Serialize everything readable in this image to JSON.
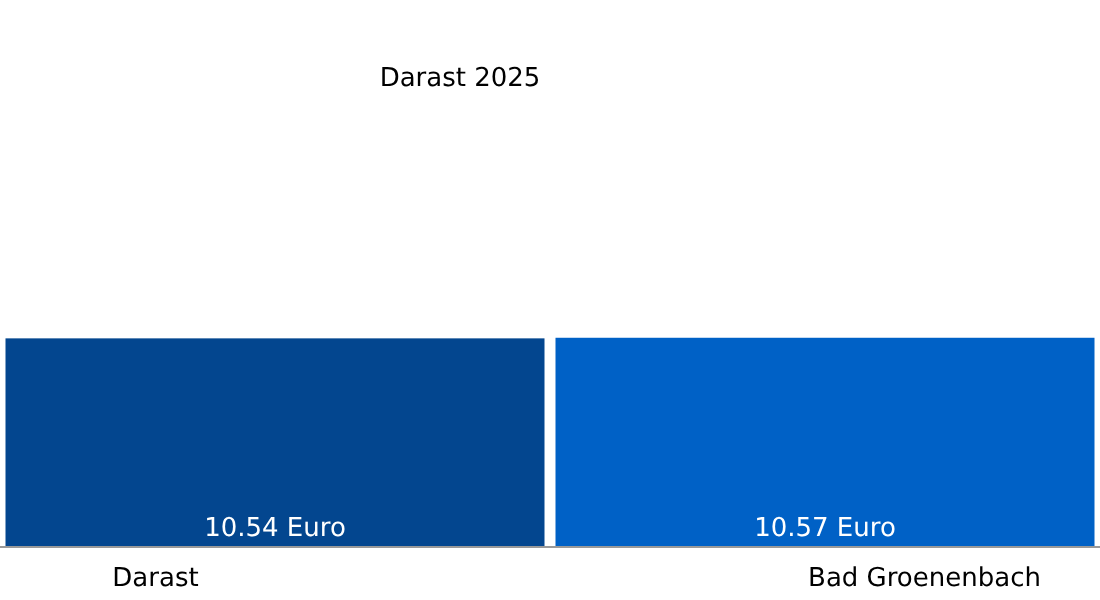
{
  "chart_data": {
    "type": "bar",
    "title": "Darast 2025",
    "categories": [
      "Darast",
      "Bad Groenenbach"
    ],
    "values": [
      10.54,
      10.57
    ],
    "colors": [
      "#03468f",
      "#0061c6"
    ],
    "value_labels": [
      "10.54 Euro",
      "10.57 Euro"
    ]
  }
}
